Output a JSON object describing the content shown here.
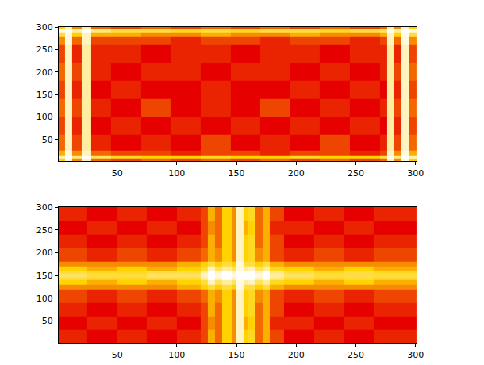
{
  "chart_data": [
    {
      "type": "heatmap",
      "x_edges": [
        1,
        6,
        12,
        20,
        28,
        45,
        70,
        95,
        120,
        145,
        170,
        195,
        220,
        245,
        270,
        276,
        282,
        288,
        295,
        301
      ],
      "y_edges": [
        1,
        8,
        15,
        25,
        60,
        100,
        140,
        180,
        220,
        260,
        280,
        288,
        295,
        301
      ],
      "z": [
        [
          0.6,
          0.95,
          0.5,
          0.9,
          0.45,
          0.4,
          0.45,
          0.4,
          0.45,
          0.4,
          0.45,
          0.4,
          0.45,
          0.4,
          0.45,
          0.9,
          0.5,
          0.95,
          0.6
        ],
        [
          0.9,
          1,
          0.8,
          1,
          0.75,
          0.65,
          0.6,
          0.6,
          0.65,
          0.6,
          0.6,
          0.65,
          0.6,
          0.6,
          0.7,
          1,
          0.8,
          1,
          0.9
        ],
        [
          0.55,
          0.95,
          0.5,
          0.9,
          0.45,
          0.4,
          0.4,
          0.35,
          0.4,
          0.4,
          0.35,
          0.4,
          0.4,
          0.35,
          0.4,
          0.9,
          0.5,
          0.95,
          0.55
        ],
        [
          0.45,
          0.9,
          0.4,
          0.85,
          0.35,
          0.3,
          0.35,
          0.3,
          0.4,
          0.3,
          0.35,
          0.3,
          0.4,
          0.3,
          0.35,
          0.85,
          0.4,
          0.9,
          0.45
        ],
        [
          0.4,
          0.9,
          0.35,
          0.85,
          0.3,
          0.35,
          0.3,
          0.35,
          0.3,
          0.35,
          0.3,
          0.35,
          0.3,
          0.35,
          0.3,
          0.85,
          0.35,
          0.9,
          0.4
        ],
        [
          0.45,
          0.9,
          0.4,
          0.85,
          0.35,
          0.3,
          0.4,
          0.3,
          0.35,
          0.3,
          0.4,
          0.3,
          0.35,
          0.3,
          0.35,
          0.85,
          0.4,
          0.9,
          0.45
        ],
        [
          0.4,
          0.9,
          0.35,
          0.85,
          0.3,
          0.35,
          0.3,
          0.3,
          0.35,
          0.3,
          0.3,
          0.35,
          0.3,
          0.35,
          0.3,
          0.85,
          0.35,
          0.9,
          0.4
        ],
        [
          0.45,
          0.9,
          0.4,
          0.85,
          0.35,
          0.3,
          0.35,
          0.35,
          0.3,
          0.35,
          0.35,
          0.3,
          0.35,
          0.3,
          0.35,
          0.85,
          0.4,
          0.9,
          0.45
        ],
        [
          0.4,
          0.9,
          0.35,
          0.85,
          0.35,
          0.35,
          0.3,
          0.35,
          0.35,
          0.3,
          0.35,
          0.35,
          0.3,
          0.35,
          0.35,
          0.85,
          0.35,
          0.9,
          0.4
        ],
        [
          0.5,
          0.95,
          0.45,
          0.9,
          0.4,
          0.4,
          0.4,
          0.35,
          0.4,
          0.4,
          0.35,
          0.4,
          0.4,
          0.35,
          0.4,
          0.9,
          0.45,
          0.95,
          0.5
        ],
        [
          0.7,
          0.95,
          0.6,
          0.9,
          0.55,
          0.55,
          0.5,
          0.5,
          0.55,
          0.5,
          0.5,
          0.55,
          0.5,
          0.5,
          0.55,
          0.9,
          0.6,
          0.95,
          0.7
        ],
        [
          0.95,
          1,
          0.85,
          1,
          0.8,
          0.7,
          0.7,
          0.65,
          0.7,
          0.65,
          0.7,
          0.7,
          0.65,
          0.7,
          0.75,
          1,
          0.85,
          1,
          0.95
        ],
        [
          0.6,
          0.9,
          0.5,
          0.85,
          0.45,
          0.4,
          0.45,
          0.4,
          0.45,
          0.4,
          0.45,
          0.4,
          0.45,
          0.4,
          0.45,
          0.85,
          0.5,
          0.9,
          0.6
        ]
      ],
      "zlim": [
        0,
        1
      ],
      "xlim": [
        1,
        301
      ],
      "ylim": [
        1,
        301
      ],
      "xticks": [
        50,
        100,
        150,
        200,
        250,
        300
      ],
      "yticks": [
        50,
        100,
        150,
        200,
        250,
        300
      ]
    },
    {
      "type": "heatmap",
      "x_edges": [
        1,
        25,
        50,
        75,
        100,
        120,
        126,
        132,
        138,
        146,
        150,
        156,
        160,
        166,
        172,
        178,
        190,
        215,
        240,
        265,
        301
      ],
      "y_edges": [
        1,
        30,
        60,
        90,
        120,
        130,
        140,
        145,
        155,
        160,
        170,
        180,
        210,
        240,
        270,
        301
      ],
      "z": [
        [
          0.35,
          0.3,
          0.35,
          0.3,
          0.35,
          0.4,
          0.55,
          0.45,
          0.6,
          0.5,
          0.9,
          0.6,
          0.65,
          0.45,
          0.55,
          0.4,
          0.3,
          0.35,
          0.3,
          0.35
        ],
        [
          0.3,
          0.35,
          0.3,
          0.35,
          0.3,
          0.4,
          0.5,
          0.45,
          0.6,
          0.5,
          0.9,
          0.55,
          0.6,
          0.45,
          0.55,
          0.35,
          0.35,
          0.3,
          0.35,
          0.3
        ],
        [
          0.35,
          0.3,
          0.35,
          0.3,
          0.35,
          0.4,
          0.55,
          0.45,
          0.6,
          0.5,
          0.9,
          0.6,
          0.65,
          0.45,
          0.55,
          0.4,
          0.3,
          0.35,
          0.3,
          0.35
        ],
        [
          0.4,
          0.35,
          0.4,
          0.35,
          0.4,
          0.45,
          0.55,
          0.5,
          0.6,
          0.5,
          0.9,
          0.6,
          0.65,
          0.5,
          0.55,
          0.4,
          0.35,
          0.4,
          0.35,
          0.4
        ],
        [
          0.5,
          0.5,
          0.5,
          0.5,
          0.55,
          0.6,
          0.7,
          0.6,
          0.7,
          0.6,
          0.95,
          0.7,
          0.7,
          0.6,
          0.7,
          0.55,
          0.5,
          0.5,
          0.5,
          0.5
        ],
        [
          0.6,
          0.55,
          0.6,
          0.55,
          0.6,
          0.7,
          0.9,
          0.75,
          0.85,
          0.75,
          0.95,
          0.85,
          0.9,
          0.75,
          0.85,
          0.65,
          0.6,
          0.55,
          0.6,
          0.55
        ],
        [
          0.7,
          0.65,
          0.65,
          0.7,
          0.7,
          0.85,
          1,
          0.9,
          1,
          0.9,
          1,
          1,
          1,
          0.9,
          1,
          0.8,
          0.7,
          0.65,
          0.7,
          0.65
        ],
        [
          0.75,
          0.7,
          0.7,
          0.75,
          0.75,
          0.9,
          1,
          0.95,
          1,
          0.95,
          1,
          1,
          1,
          0.95,
          1,
          0.85,
          0.75,
          0.7,
          0.7,
          0.7
        ],
        [
          0.7,
          0.65,
          0.65,
          0.7,
          0.7,
          0.85,
          1,
          0.9,
          1,
          0.9,
          1,
          1,
          1,
          0.9,
          1,
          0.8,
          0.7,
          0.65,
          0.7,
          0.65
        ],
        [
          0.6,
          0.55,
          0.6,
          0.55,
          0.6,
          0.7,
          0.9,
          0.75,
          0.85,
          0.75,
          0.95,
          0.85,
          0.9,
          0.75,
          0.85,
          0.65,
          0.6,
          0.55,
          0.6,
          0.55
        ],
        [
          0.5,
          0.5,
          0.5,
          0.5,
          0.55,
          0.6,
          0.7,
          0.6,
          0.7,
          0.6,
          0.95,
          0.7,
          0.7,
          0.6,
          0.7,
          0.55,
          0.5,
          0.5,
          0.5,
          0.5
        ],
        [
          0.4,
          0.35,
          0.4,
          0.35,
          0.4,
          0.45,
          0.55,
          0.5,
          0.6,
          0.5,
          0.9,
          0.6,
          0.65,
          0.5,
          0.55,
          0.4,
          0.35,
          0.4,
          0.35,
          0.4
        ],
        [
          0.35,
          0.3,
          0.35,
          0.3,
          0.35,
          0.4,
          0.55,
          0.45,
          0.6,
          0.5,
          0.9,
          0.6,
          0.65,
          0.45,
          0.55,
          0.4,
          0.3,
          0.35,
          0.3,
          0.35
        ],
        [
          0.3,
          0.35,
          0.3,
          0.35,
          0.3,
          0.4,
          0.5,
          0.45,
          0.6,
          0.5,
          0.9,
          0.55,
          0.6,
          0.45,
          0.55,
          0.35,
          0.35,
          0.3,
          0.35,
          0.3
        ],
        [
          0.35,
          0.3,
          0.35,
          0.3,
          0.35,
          0.4,
          0.55,
          0.45,
          0.6,
          0.5,
          0.9,
          0.6,
          0.65,
          0.45,
          0.55,
          0.4,
          0.3,
          0.35,
          0.3,
          0.35
        ]
      ],
      "zlim": [
        0,
        1
      ],
      "xlim": [
        1,
        301
      ],
      "ylim": [
        1,
        301
      ],
      "xticks": [
        50,
        100,
        150,
        200,
        250,
        300
      ],
      "yticks": [
        50,
        100,
        150,
        200,
        250,
        300
      ]
    }
  ]
}
